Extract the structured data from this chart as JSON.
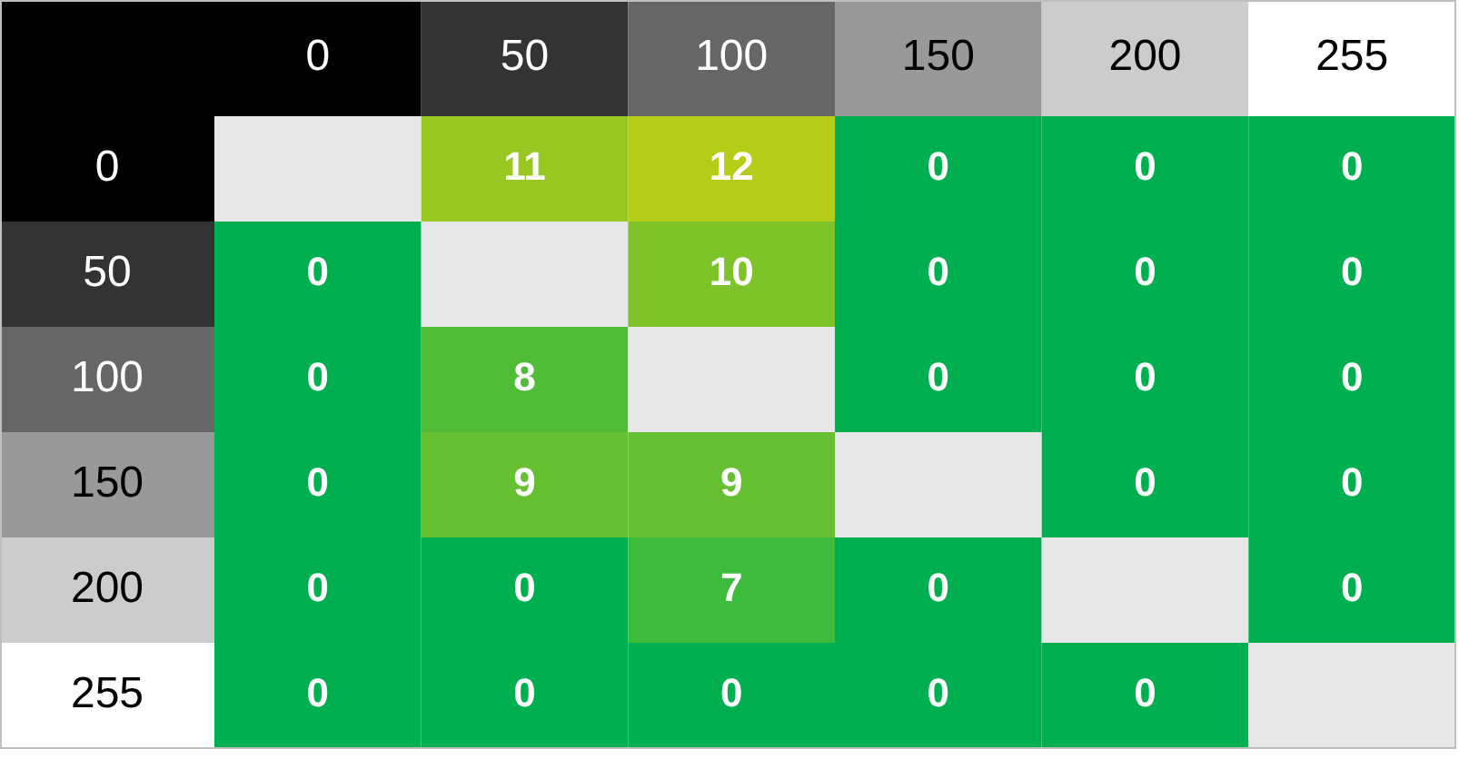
{
  "chart_data": {
    "type": "heatmap",
    "categories": [
      "0",
      "50",
      "100",
      "150",
      "200",
      "255"
    ],
    "y_categories": [
      "0",
      "50",
      "100",
      "150",
      "200",
      "255"
    ],
    "cells": [
      [
        null,
        11,
        12,
        0,
        0,
        0
      ],
      [
        0,
        null,
        10,
        0,
        0,
        0
      ],
      [
        0,
        8,
        null,
        0,
        0,
        0
      ],
      [
        0,
        9,
        9,
        null,
        0,
        0
      ],
      [
        0,
        0,
        7,
        0,
        null,
        0
      ],
      [
        0,
        0,
        0,
        0,
        0,
        null
      ]
    ],
    "data_labels": true
  }
}
